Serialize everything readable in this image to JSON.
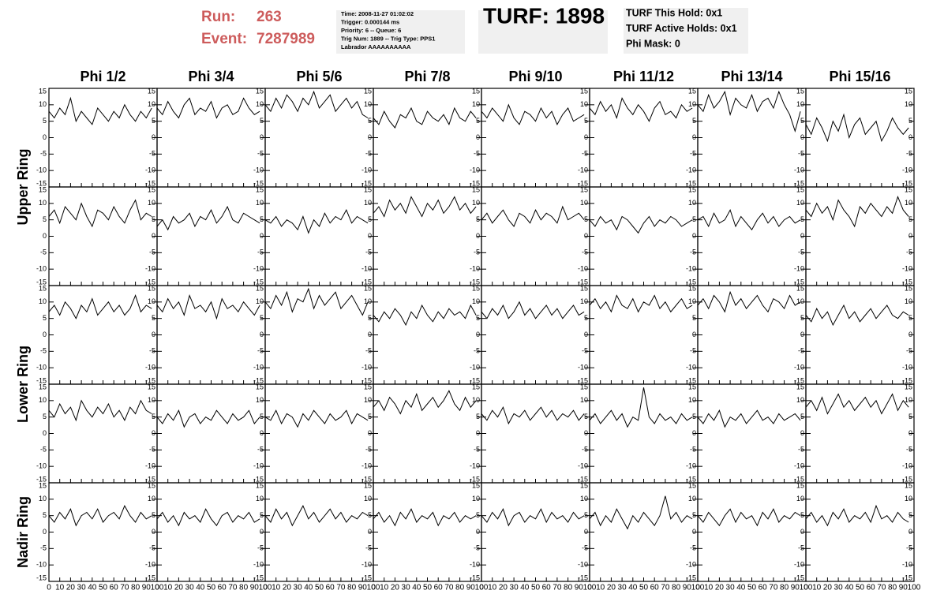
{
  "header": {
    "run_label": "Run:",
    "run": "263",
    "event_label": "Event:",
    "event": "7287989",
    "info_lines": [
      "Time: 2008-11-27 01:02:02",
      "Trigger: 0.000144 ms",
      "Priority: 6 -- Queue: 6",
      "Trig Num: 1889 -- Trig Type: PPS1",
      "Labrador AAAAAAAAAA"
    ],
    "turf": "TURF: 1898",
    "status_lines": [
      "TURF This Hold: 0x1",
      "TURF Active Holds: 0x1",
      "Phi Mask: 0"
    ]
  },
  "chart_data": {
    "type": "line",
    "columns": [
      "Phi 1/2",
      "Phi 3/4",
      "Phi 5/6",
      "Phi 7/8",
      "Phi 9/10",
      "Phi 11/12",
      "Phi 13/14",
      "Phi 15/16"
    ],
    "rings": [
      "Upper Ring",
      "Lower Ring",
      "Nadir Ring"
    ],
    "x": [
      0,
      5,
      10,
      15,
      20,
      25,
      30,
      35,
      40,
      45,
      50,
      55,
      60,
      65,
      70,
      75,
      80,
      85,
      90,
      95
    ],
    "xlim": [
      0,
      100
    ],
    "xticks": [
      0,
      10,
      20,
      30,
      40,
      50,
      60,
      70,
      80,
      90,
      100
    ],
    "ylim": [
      -15,
      15
    ],
    "yticks": [
      -15,
      -10,
      -5,
      0,
      5,
      10,
      15
    ],
    "color": "#000000",
    "series": [
      {
        "values": [
          8,
          6,
          9,
          7,
          12,
          5,
          8,
          6,
          4,
          9,
          7,
          5,
          8,
          6,
          10,
          7,
          5,
          8,
          6,
          9
        ]
      },
      {
        "values": [
          9,
          7,
          11,
          8,
          6,
          10,
          12,
          7,
          9,
          8,
          11,
          6,
          9,
          10,
          7,
          8,
          12,
          9,
          7,
          8
        ]
      },
      {
        "values": [
          10,
          8,
          12,
          9,
          13,
          11,
          8,
          12,
          10,
          14,
          9,
          11,
          13,
          8,
          10,
          12,
          9,
          11,
          7,
          6
        ]
      },
      {
        "values": [
          6,
          4,
          8,
          5,
          3,
          7,
          6,
          9,
          5,
          4,
          8,
          6,
          5,
          7,
          4,
          9,
          6,
          5,
          8,
          6
        ]
      },
      {
        "values": [
          8,
          6,
          9,
          7,
          5,
          10,
          6,
          4,
          8,
          7,
          5,
          9,
          6,
          8,
          4,
          7,
          9,
          5,
          6,
          7
        ]
      },
      {
        "values": [
          9,
          7,
          11,
          8,
          10,
          6,
          12,
          9,
          7,
          10,
          8,
          5,
          9,
          11,
          7,
          8,
          6,
          10,
          8,
          9
        ]
      },
      {
        "values": [
          10,
          8,
          13,
          9,
          11,
          14,
          7,
          12,
          10,
          9,
          13,
          8,
          11,
          12,
          9,
          14,
          10,
          7,
          2,
          8
        ]
      },
      {
        "values": [
          4,
          1,
          6,
          3,
          -1,
          5,
          2,
          7,
          0,
          4,
          6,
          1,
          3,
          5,
          -1,
          2,
          6,
          3,
          1,
          3
        ]
      },
      {
        "values": [
          6,
          8,
          4,
          9,
          7,
          5,
          10,
          6,
          3,
          8,
          7,
          5,
          9,
          6,
          4,
          8,
          11,
          5,
          7,
          6
        ]
      },
      {
        "values": [
          3,
          5,
          2,
          6,
          4,
          5,
          7,
          3,
          6,
          5,
          8,
          4,
          6,
          9,
          5,
          4,
          7,
          6,
          5,
          4
        ]
      },
      {
        "values": [
          5,
          4,
          6,
          3,
          5,
          4,
          2,
          6,
          1,
          5,
          3,
          7,
          4,
          6,
          5,
          8,
          4,
          6,
          5,
          4
        ]
      },
      {
        "values": [
          7,
          9,
          6,
          11,
          8,
          10,
          7,
          12,
          9,
          6,
          10,
          8,
          11,
          7,
          9,
          12,
          8,
          10,
          7,
          9
        ]
      },
      {
        "values": [
          5,
          7,
          4,
          6,
          8,
          5,
          3,
          7,
          6,
          4,
          8,
          5,
          7,
          6,
          4,
          9,
          5,
          6,
          7,
          5
        ]
      },
      {
        "values": [
          5,
          3,
          6,
          4,
          5,
          2,
          6,
          5,
          3,
          1,
          4,
          6,
          3,
          5,
          4,
          6,
          5,
          3,
          4,
          5
        ]
      },
      {
        "values": [
          5,
          6,
          3,
          7,
          4,
          5,
          8,
          3,
          6,
          4,
          2,
          5,
          7,
          4,
          6,
          3,
          5,
          6,
          4,
          5
        ]
      },
      {
        "values": [
          8,
          6,
          10,
          7,
          9,
          5,
          11,
          8,
          6,
          3,
          9,
          7,
          10,
          8,
          6,
          9,
          7,
          12,
          8,
          6
        ]
      },
      {
        "values": [
          7,
          9,
          6,
          10,
          8,
          5,
          9,
          7,
          11,
          6,
          8,
          10,
          7,
          9,
          6,
          8,
          12,
          7,
          9,
          8
        ]
      },
      {
        "values": [
          9,
          7,
          11,
          8,
          10,
          6,
          12,
          8,
          9,
          7,
          10,
          5,
          11,
          8,
          9,
          7,
          10,
          8,
          6,
          9
        ]
      },
      {
        "values": [
          10,
          8,
          12,
          9,
          13,
          7,
          11,
          10,
          14,
          8,
          12,
          9,
          11,
          13,
          8,
          10,
          12,
          9,
          6,
          10
        ]
      },
      {
        "values": [
          6,
          4,
          7,
          5,
          8,
          6,
          3,
          7,
          5,
          9,
          6,
          4,
          7,
          5,
          8,
          6,
          7,
          5,
          9,
          6
        ]
      },
      {
        "values": [
          7,
          5,
          8,
          6,
          9,
          5,
          7,
          10,
          6,
          8,
          5,
          7,
          9,
          6,
          8,
          5,
          7,
          9,
          6,
          7
        ]
      },
      {
        "values": [
          9,
          11,
          8,
          10,
          7,
          12,
          9,
          8,
          11,
          7,
          10,
          9,
          12,
          8,
          10,
          7,
          9,
          11,
          8,
          9
        ]
      },
      {
        "values": [
          9,
          11,
          8,
          12,
          10,
          7,
          13,
          9,
          11,
          8,
          10,
          12,
          9,
          7,
          11,
          10,
          8,
          12,
          9,
          10
        ]
      },
      {
        "values": [
          6,
          4,
          8,
          5,
          7,
          3,
          6,
          9,
          5,
          7,
          4,
          6,
          8,
          5,
          7,
          9,
          6,
          5,
          7,
          6
        ]
      },
      {
        "values": [
          7,
          5,
          9,
          6,
          8,
          4,
          10,
          7,
          5,
          8,
          6,
          9,
          5,
          7,
          4,
          8,
          6,
          10,
          7,
          6
        ]
      },
      {
        "values": [
          5,
          3,
          6,
          4,
          7,
          2,
          5,
          6,
          3,
          5,
          4,
          7,
          5,
          3,
          6,
          4,
          5,
          7,
          3,
          5
        ]
      },
      {
        "values": [
          5,
          4,
          7,
          3,
          6,
          5,
          2,
          6,
          4,
          7,
          5,
          3,
          6,
          4,
          5,
          7,
          3,
          6,
          5,
          4
        ]
      },
      {
        "values": [
          8,
          10,
          7,
          11,
          9,
          6,
          10,
          8,
          12,
          7,
          9,
          11,
          8,
          10,
          13,
          9,
          7,
          11,
          8,
          10
        ]
      },
      {
        "values": [
          6,
          4,
          7,
          5,
          8,
          3,
          6,
          5,
          7,
          4,
          6,
          8,
          5,
          7,
          4,
          6,
          5,
          7,
          4,
          6
        ]
      },
      {
        "values": [
          4,
          6,
          3,
          5,
          7,
          4,
          6,
          2,
          5,
          4,
          14,
          5,
          3,
          6,
          4,
          5,
          3,
          6,
          4,
          5
        ]
      },
      {
        "values": [
          5,
          3,
          6,
          4,
          7,
          2,
          5,
          4,
          6,
          3,
          5,
          7,
          4,
          5,
          3,
          6,
          4,
          5,
          6,
          4
        ]
      },
      {
        "values": [
          8,
          10,
          7,
          11,
          6,
          9,
          12,
          8,
          10,
          7,
          9,
          11,
          8,
          10,
          6,
          9,
          12,
          7,
          10,
          8
        ]
      },
      {
        "values": [
          5,
          3,
          6,
          4,
          7,
          2,
          5,
          6,
          4,
          7,
          3,
          5,
          6,
          4,
          8,
          5,
          3,
          6,
          4,
          5
        ]
      },
      {
        "values": [
          4,
          6,
          3,
          5,
          2,
          6,
          4,
          5,
          3,
          7,
          4,
          2,
          5,
          6,
          3,
          5,
          4,
          6,
          3,
          4
        ]
      },
      {
        "values": [
          5,
          3,
          7,
          4,
          6,
          2,
          5,
          8,
          4,
          6,
          3,
          5,
          7,
          4,
          6,
          3,
          5,
          4,
          6,
          5
        ]
      },
      {
        "values": [
          4,
          6,
          3,
          5,
          2,
          6,
          4,
          7,
          3,
          5,
          4,
          6,
          2,
          5,
          4,
          6,
          3,
          5,
          4,
          5
        ]
      },
      {
        "values": [
          5,
          3,
          6,
          4,
          7,
          2,
          5,
          6,
          3,
          5,
          4,
          7,
          3,
          6,
          4,
          5,
          3,
          6,
          4,
          5
        ]
      },
      {
        "values": [
          4,
          6,
          2,
          5,
          3,
          7,
          4,
          1,
          5,
          3,
          6,
          4,
          2,
          5,
          11,
          4,
          6,
          3,
          5,
          4
        ]
      },
      {
        "values": [
          5,
          3,
          6,
          4,
          2,
          5,
          7,
          3,
          6,
          4,
          5,
          2,
          6,
          4,
          7,
          3,
          5,
          4,
          6,
          5
        ]
      },
      {
        "values": [
          4,
          6,
          3,
          5,
          2,
          6,
          4,
          7,
          3,
          5,
          4,
          6,
          3,
          8,
          4,
          5,
          3,
          6,
          4,
          3
        ]
      }
    ]
  }
}
